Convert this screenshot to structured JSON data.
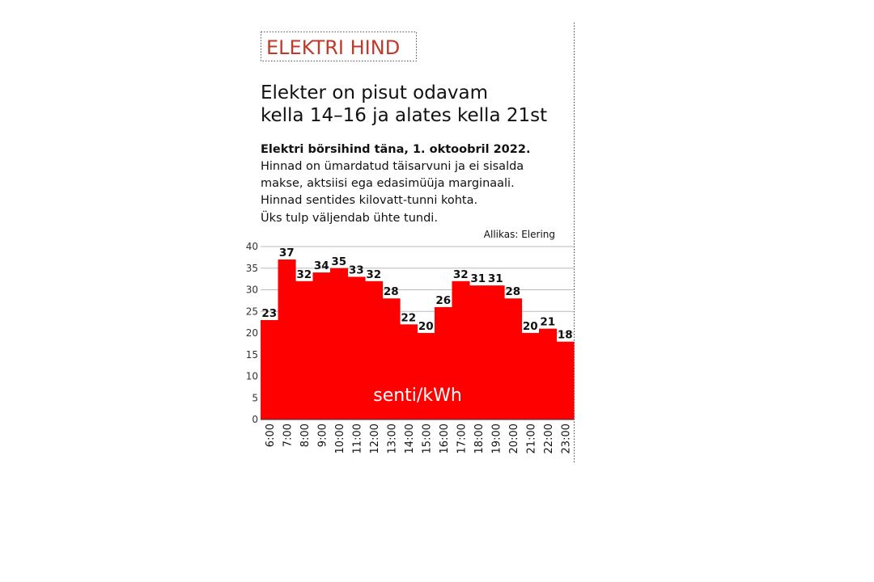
{
  "chart_data": {
    "type": "bar",
    "kicker": "ELEKTRI HIND",
    "title_lines": [
      "Elekter on pisut odavam",
      "kella 14–16 ja alates kella 21st"
    ],
    "subtitle": "Elektri börsihind täna, 1. oktoobril 2022.",
    "notes": [
      "Hinnad on ümardatud täisarvuni ja ei sisalda",
      "makse, aktsiisi ega edasimüüja marginaali.",
      "Hinnad sentides kilovatt-tunni kohta.",
      "Üks tulp väljendab ühte tundi."
    ],
    "source": "Allikas: Elering",
    "unit_label": "senti/kWh",
    "categories": [
      "6:00",
      "7:00",
      "8:00",
      "9:00",
      "10:00",
      "11:00",
      "12:00",
      "13:00",
      "14:00",
      "15:00",
      "16:00",
      "17:00",
      "18:00",
      "19:00",
      "20:00",
      "21:00",
      "22:00",
      "23:00"
    ],
    "values": [
      23,
      37,
      32,
      34,
      35,
      33,
      32,
      28,
      22,
      20,
      26,
      32,
      31,
      31,
      28,
      20,
      21,
      18
    ],
    "color": "#ff0000",
    "ylim": [
      0,
      40
    ],
    "yticks": [
      0,
      5,
      10,
      15,
      20,
      25,
      30,
      35,
      40
    ],
    "grid": true
  }
}
